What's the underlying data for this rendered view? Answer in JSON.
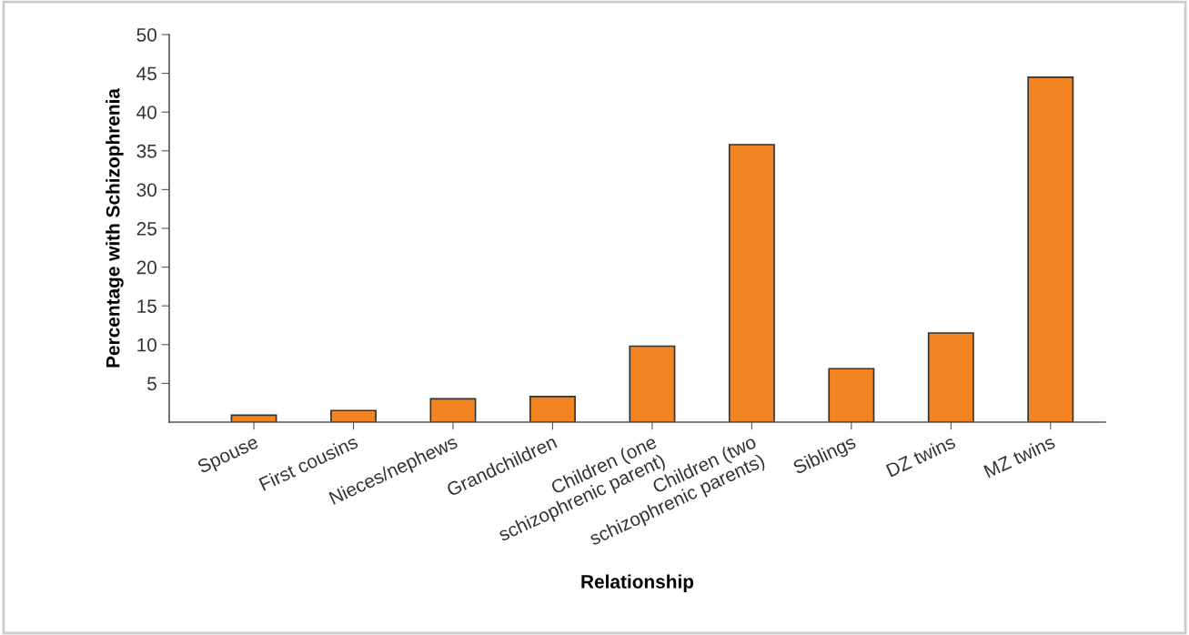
{
  "chart_data": {
    "type": "bar",
    "xlabel": "Relationship",
    "ylabel": "Percentage with Schizophrenia",
    "categories": [
      "Spouse",
      "First cousins",
      "Nieces/nephews",
      "Grandchildren",
      "Children (one\nschizophrenic parent)",
      "Children (two\nschizophrenic parents)",
      "Siblings",
      "DZ twins",
      "MZ twins"
    ],
    "values": [
      0.9,
      1.5,
      3.0,
      3.3,
      9.8,
      35.8,
      6.9,
      11.5,
      44.5
    ],
    "color": "#f28522",
    "ylim": [
      0,
      50
    ],
    "yticks": [
      5,
      10,
      15,
      20,
      25,
      30,
      35,
      40,
      45,
      50
    ],
    "grid": false
  }
}
